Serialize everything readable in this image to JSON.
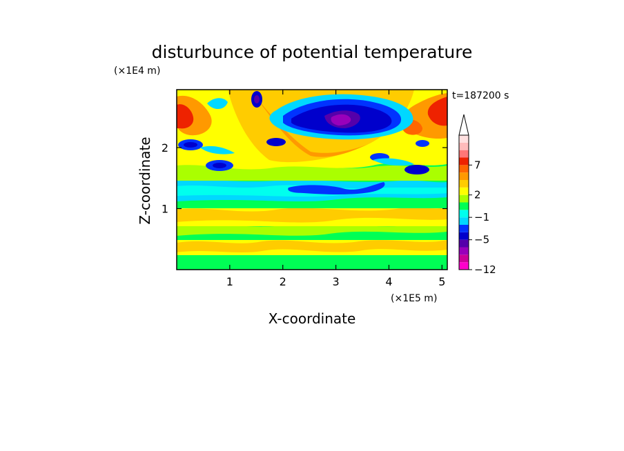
{
  "chart_data": {
    "type": "heatmap",
    "title": "disturbunce of potential temperature",
    "time_label": "t=187200 s",
    "xlabel": "X-coordinate",
    "ylabel": "Z-coordinate",
    "x_multiplier": "(×1E5 m)",
    "y_multiplier": "(×1E4 m)",
    "xlim": [
      0,
      5.1
    ],
    "ylim": [
      0,
      2.95
    ],
    "x_ticks": [
      {
        "value": 1,
        "label": "1"
      },
      {
        "value": 2,
        "label": "2"
      },
      {
        "value": 3,
        "label": "3"
      },
      {
        "value": 4,
        "label": "4"
      },
      {
        "value": 5,
        "label": "5"
      }
    ],
    "y_ticks": [
      {
        "value": 1,
        "label": "1"
      },
      {
        "value": 2,
        "label": "2"
      }
    ],
    "colorbar": {
      "colors": [
        "#ff00cc",
        "#cc0099",
        "#9900bb",
        "#5500aa",
        "#0000cc",
        "#0033ff",
        "#00d8ff",
        "#00ffee",
        "#00ff55",
        "#aaff00",
        "#ffff00",
        "#ffcc00",
        "#ff9900",
        "#ff6600",
        "#ee2200",
        "#ff7777",
        "#ffbbbb",
        "#ffe0e0"
      ],
      "labels": [
        {
          "value": -12,
          "label": "−12"
        },
        {
          "value": -5,
          "label": "−5"
        },
        {
          "value": -1,
          "label": "−1"
        },
        {
          "value": 2,
          "label": "2"
        },
        {
          "value": 7,
          "label": "7"
        }
      ],
      "extend": "max"
    },
    "field_features": [
      {
        "x": 2.95,
        "z": 2.65,
        "value": -8
      },
      {
        "x": 3.25,
        "z": 2.45,
        "value": -6
      },
      {
        "x": 3.6,
        "z": 2.55,
        "value": -4
      },
      {
        "x": 1.45,
        "z": 2.55,
        "value": -4
      },
      {
        "x": 0.3,
        "z": 2.05,
        "value": -3
      },
      {
        "x": 0.9,
        "z": 1.75,
        "value": -3
      },
      {
        "x": 4.4,
        "z": 1.65,
        "value": -3
      },
      {
        "x": 3.8,
        "z": 1.85,
        "value": -3
      },
      {
        "x": 2.6,
        "z": 1.4,
        "value": -3
      },
      {
        "x": 3.4,
        "z": 1.42,
        "value": -3
      },
      {
        "x": 0.1,
        "z": 2.6,
        "value": 7
      },
      {
        "x": 4.9,
        "z": 2.65,
        "value": 7
      },
      {
        "x": 4.4,
        "z": 2.4,
        "value": 6
      },
      {
        "x": 1.6,
        "z": 2.45,
        "value": 6
      },
      {
        "x": 2.7,
        "z": 2.05,
        "value": 5
      },
      {
        "x": 2.8,
        "z": 0.5,
        "value": 3
      },
      {
        "x": 1.2,
        "z": 0.55,
        "value": 2
      }
    ]
  }
}
